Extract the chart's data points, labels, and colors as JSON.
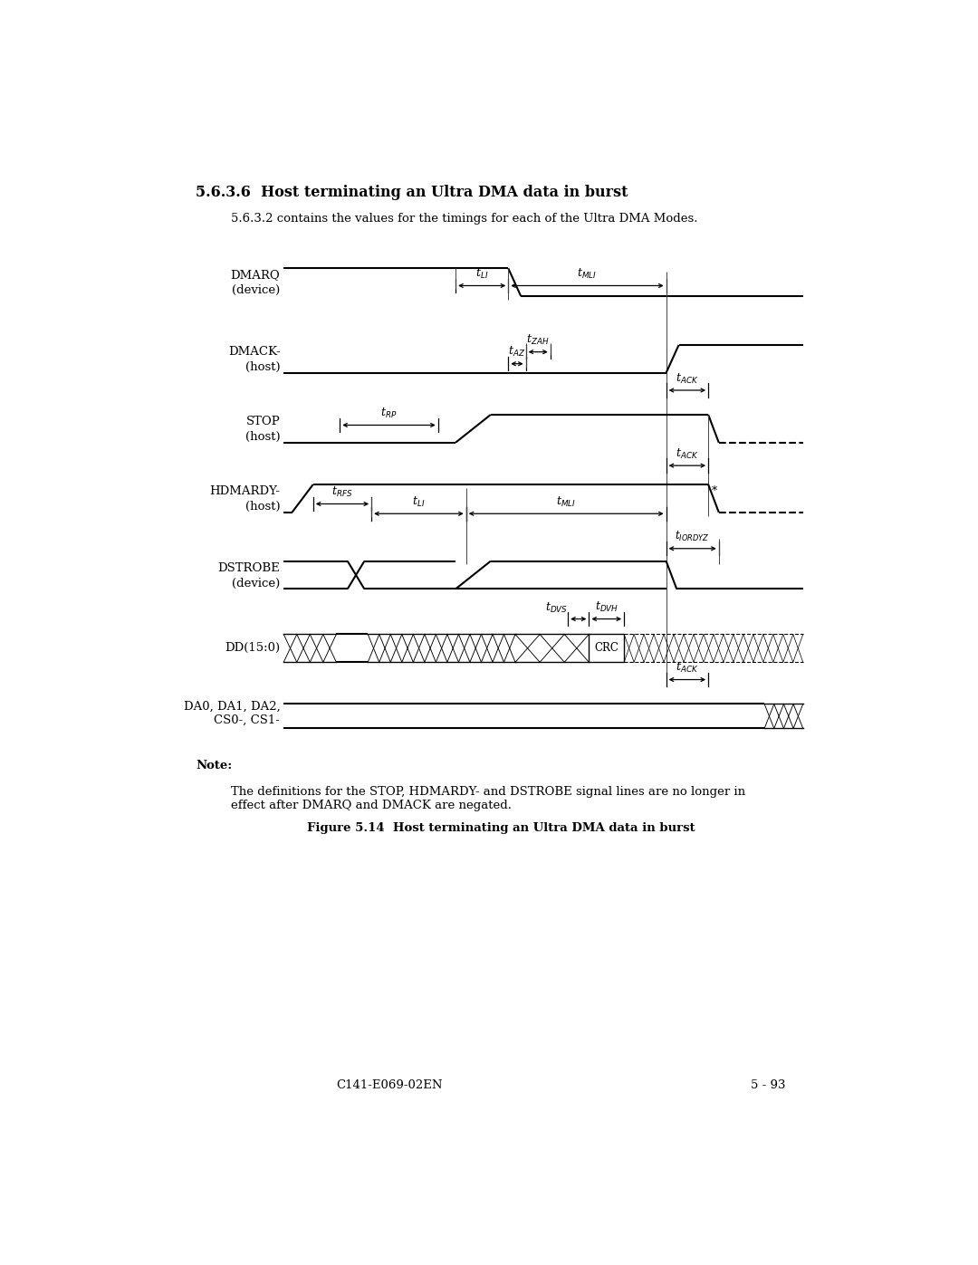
{
  "title_section": "5.6.3.6  Host terminating an Ultra DMA data in burst",
  "subtitle": "5.6.3.2 contains the values for the timings for each of the Ultra DMA Modes.",
  "figure_caption": "Figure 5.14  Host terminating an Ultra DMA data in burst",
  "note_label": "Note:",
  "note_text": "The definitions for the STOP, HDMARDY- and DSTROBE signal lines are no longer in\neffect after DMARQ and DMACK are negated.",
  "footer_left": "C141-E069-02EN",
  "footer_right": "5 - 93",
  "bg_color": "#ffffff",
  "signals": [
    "DMARQ",
    "DMACK-",
    "STOP",
    "HDMARDY-",
    "DSTROBE",
    "DD(15:0)",
    "DA0, DA1, DA2,"
  ],
  "signal_subs": [
    "(device)",
    "(host)",
    "(host)",
    "(host)",
    "(device)",
    "",
    "CS0-, CS1-"
  ],
  "fs_title": 11.5,
  "fs_body": 9.5,
  "fs_signal": 9.5,
  "fs_timing": 9.0,
  "fs_note": 9.5,
  "fs_footer": 9.5,
  "lw_signal": 1.5,
  "lw_timing": 0.9
}
